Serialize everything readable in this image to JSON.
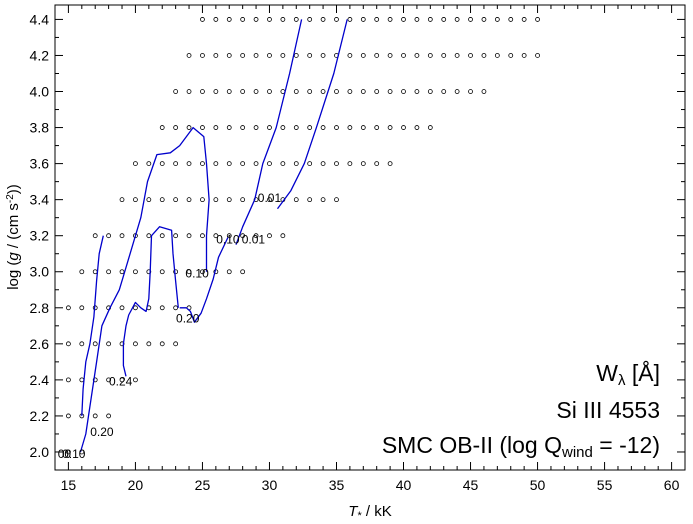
{
  "chart_data": {
    "type": "scatter",
    "xlabel": {
      "var": "T",
      "sub": "*",
      "unit": " / kK"
    },
    "ylabel": {
      "pre": "log (",
      "var": "g",
      "unit": " / (cm s",
      "sup": "-2",
      "post": "))"
    },
    "xlim": [
      14,
      61
    ],
    "ylim": [
      1.9,
      4.48
    ],
    "xticks": [
      15,
      20,
      25,
      30,
      35,
      40,
      45,
      50,
      55,
      60
    ],
    "xtick_labels": [
      "15",
      "20",
      "25",
      "30",
      "35",
      "40",
      "45",
      "50",
      "55",
      "60"
    ],
    "yticks": [
      2.0,
      2.2,
      2.4,
      2.6,
      2.8,
      3.0,
      3.2,
      3.4,
      3.6,
      3.8,
      4.0,
      4.2,
      4.4
    ],
    "ytick_labels": [
      "2.0",
      "2.2",
      "2.4",
      "2.6",
      "2.8",
      "3.0",
      "3.2",
      "3.4",
      "3.6",
      "3.8",
      "4.0",
      "4.2",
      "4.4"
    ],
    "grid": false,
    "marker_color": "#000000",
    "contour_color": "#0000cc",
    "grid_models": [
      {
        "logg": 4.4,
        "teff_min": 25,
        "teff_max": 50
      },
      {
        "logg": 4.2,
        "teff_min": 24,
        "teff_max": 50
      },
      {
        "logg": 4.0,
        "teff_min": 23,
        "teff_max": 46
      },
      {
        "logg": 3.8,
        "teff_min": 22,
        "teff_max": 42
      },
      {
        "logg": 3.6,
        "teff_min": 20,
        "teff_max": 39
      },
      {
        "logg": 3.4,
        "teff_min": 19,
        "teff_max": 35
      },
      {
        "logg": 3.2,
        "teff_min": 17,
        "teff_max": 31
      },
      {
        "logg": 3.0,
        "teff_min": 16,
        "teff_max": 28
      },
      {
        "logg": 2.8,
        "teff_min": 15,
        "teff_max": 24
      },
      {
        "logg": 2.6,
        "teff_min": 15,
        "teff_max": 23
      },
      {
        "logg": 2.4,
        "teff_min": 15,
        "teff_max": 20
      },
      {
        "logg": 2.2,
        "teff_min": 15,
        "teff_max": 18
      },
      {
        "logg": 2.0,
        "teff_min": 15,
        "teff_max": 16
      }
    ],
    "contours": [
      {
        "name": "0.01",
        "points": [
          [
            32.4,
            4.4
          ],
          [
            31.5,
            4.1
          ],
          [
            30.5,
            3.8
          ],
          [
            29.5,
            3.6
          ],
          [
            28.9,
            3.4
          ],
          [
            28.0,
            3.25
          ],
          [
            27.5,
            3.15
          ]
        ]
      },
      {
        "name": "0.01",
        "points": [
          [
            35.8,
            4.4
          ],
          [
            34.8,
            4.1
          ],
          [
            33.5,
            3.8
          ],
          [
            32.6,
            3.6
          ],
          [
            31.6,
            3.45
          ],
          [
            30.6,
            3.35
          ]
        ]
      },
      {
        "name": "0.10",
        "points": [
          [
            26.9,
            3.19
          ],
          [
            26.2,
            3.08
          ],
          [
            25.8,
            2.96
          ],
          [
            25.3,
            2.85
          ],
          [
            24.9,
            2.77
          ],
          [
            24.4,
            2.72
          ],
          [
            24.1,
            2.78
          ],
          [
            23.8,
            2.8
          ],
          [
            23.3,
            2.8
          ]
        ]
      },
      {
        "name": "0.10",
        "points": [
          [
            25.3,
            3.0
          ],
          [
            25.3,
            3.2
          ],
          [
            25.5,
            3.4
          ],
          [
            25.3,
            3.6
          ],
          [
            25.1,
            3.75
          ],
          [
            24.3,
            3.8
          ],
          [
            23.3,
            3.7
          ],
          [
            22.6,
            3.66
          ],
          [
            21.6,
            3.65
          ],
          [
            20.9,
            3.5
          ],
          [
            20.4,
            3.3
          ],
          [
            19.6,
            3.1
          ],
          [
            18.8,
            2.9
          ],
          [
            18.1,
            2.8
          ],
          [
            17.5,
            2.7
          ],
          [
            17.1,
            2.5
          ],
          [
            16.7,
            2.3
          ],
          [
            16.3,
            2.1
          ],
          [
            15.9,
            2.0
          ]
        ]
      },
      {
        "name": "0.20",
        "points": [
          [
            23.2,
            2.8
          ],
          [
            23.0,
            2.95
          ],
          [
            22.8,
            3.1
          ],
          [
            22.7,
            3.23
          ],
          [
            21.8,
            3.25
          ],
          [
            21.2,
            3.2
          ],
          [
            21.1,
            3.0
          ],
          [
            21.0,
            2.85
          ],
          [
            20.8,
            2.78
          ],
          [
            20.4,
            2.8
          ],
          [
            20.0,
            2.83
          ],
          [
            19.5,
            2.76
          ],
          [
            19.3,
            2.7
          ],
          [
            19.2,
            2.65
          ],
          [
            19.1,
            2.6
          ],
          [
            19.1,
            2.48
          ],
          [
            19.3,
            2.42
          ]
        ]
      },
      {
        "name": "0.20",
        "points": [
          [
            17.6,
            3.2
          ],
          [
            17.3,
            3.1
          ],
          [
            17.1,
            2.95
          ],
          [
            16.9,
            2.75
          ],
          [
            16.6,
            2.6
          ],
          [
            16.3,
            2.5
          ],
          [
            16.1,
            2.35
          ],
          [
            16.0,
            2.2
          ]
        ]
      }
    ],
    "contour_labels": [
      {
        "text": "0.01",
        "x": 30.0,
        "y": 3.41
      },
      {
        "text": "0.10",
        "x": 26.9,
        "y": 3.18
      },
      {
        "text": "0.01",
        "x": 28.8,
        "y": 3.18
      },
      {
        "text": "0.10",
        "x": 24.6,
        "y": 2.99
      },
      {
        "text": "0.20",
        "x": 23.9,
        "y": 2.74
      },
      {
        "text": "0.24",
        "x": 18.9,
        "y": 2.39
      },
      {
        "text": "0.20",
        "x": 17.5,
        "y": 2.11
      },
      {
        "text": "0.10",
        "x": 15.4,
        "y": 1.99
      },
      {
        "text": "00",
        "x": 14.7,
        "y": 1.99
      }
    ],
    "annotations": [
      {
        "text": "W",
        "sub": "λ",
        "post": "  [Å]"
      },
      {
        "text": "Si III 4553"
      },
      {
        "text": "SMC OB-II (log Q",
        "sub": "wind",
        "post": " = -12)"
      }
    ]
  }
}
